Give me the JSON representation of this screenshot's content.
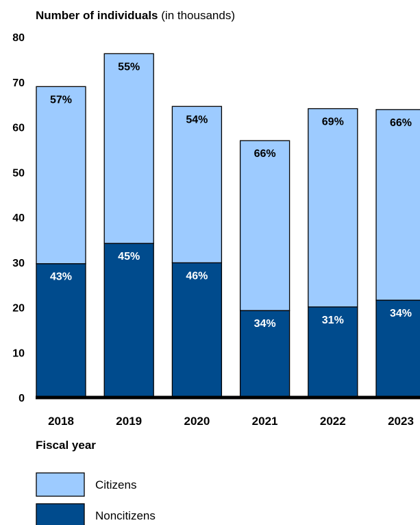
{
  "chart_data": {
    "type": "bar",
    "stacked": true,
    "title_bold": "Number of individuals",
    "title_rest": " (in thousands)",
    "xlabel": "Fiscal year",
    "ylim": [
      0,
      80
    ],
    "yticks": [
      "0",
      "10",
      "20",
      "30",
      "40",
      "50",
      "60",
      "70",
      "80"
    ],
    "categories": [
      "2018",
      "2019",
      "2020",
      "2021",
      "2022",
      "2023"
    ],
    "series": [
      {
        "name": "Noncitizens",
        "color": "#004b8d",
        "values": [
          29.7,
          34.2,
          29.9,
          19.3,
          20.1,
          21.6
        ],
        "labels": [
          "43%",
          "45%",
          "46%",
          "34%",
          "31%",
          "34%"
        ]
      },
      {
        "name": "Citizens",
        "color": "#9dcbff",
        "values": [
          39.3,
          42.1,
          34.7,
          37.7,
          44.0,
          42.3
        ],
        "labels": [
          "57%",
          "55%",
          "54%",
          "66%",
          "69%",
          "66%"
        ]
      }
    ],
    "legend": {
      "placement": "bottom-left",
      "entries": [
        {
          "label": "Citizens",
          "color": "#9dcbff"
        },
        {
          "label": "Noncitizens",
          "color": "#004b8d"
        }
      ]
    },
    "grid": false
  }
}
